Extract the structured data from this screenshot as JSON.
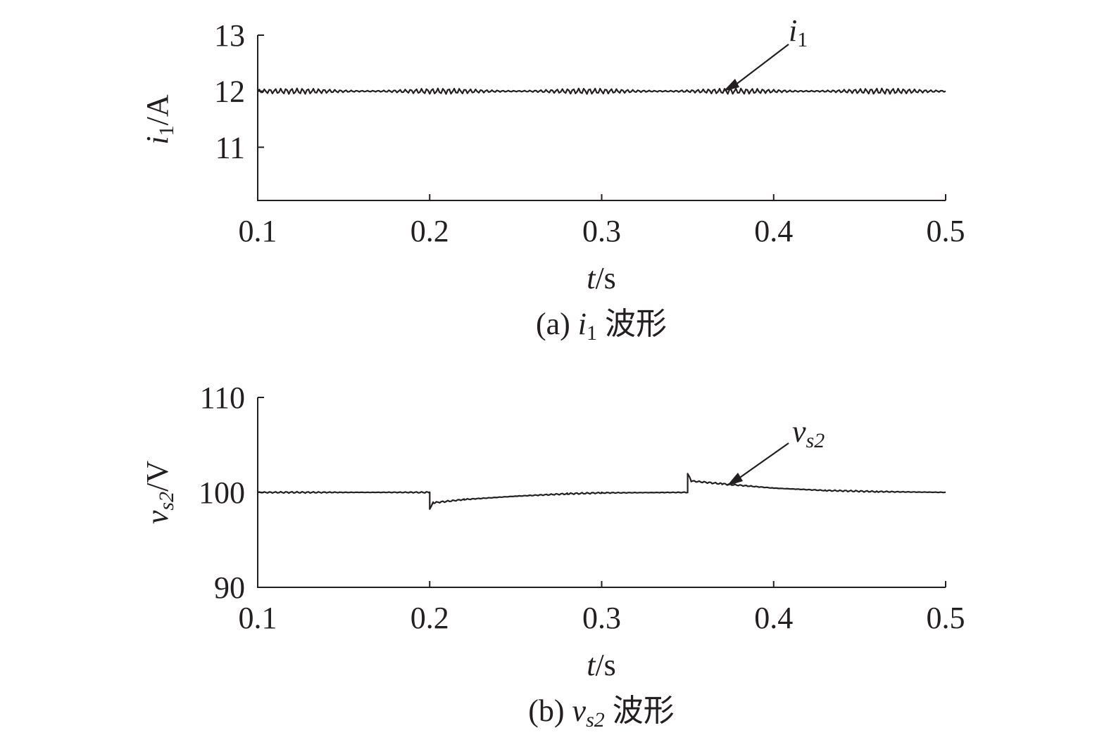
{
  "chart_data": [
    {
      "type": "line",
      "panel": "a",
      "caption": {
        "prefix": "(a) ",
        "var_main": "i",
        "var_sub": "1",
        "suffix": " 波形"
      },
      "ylabel": {
        "main": "i",
        "sub": "1",
        "unit": "/A"
      },
      "xlabel": {
        "main": "t",
        "unit": "/s"
      },
      "xlim": [
        0.1,
        0.5
      ],
      "ylim": [
        10.05,
        13
      ],
      "xticks": [
        0.1,
        0.2,
        0.3,
        0.4,
        0.5
      ],
      "xtick_labels": [
        "0.1",
        "0.2",
        "0.3",
        "0.4",
        "0.5"
      ],
      "yticks": [
        11,
        12,
        13
      ],
      "ytick_labels": [
        "11",
        "12",
        "13"
      ],
      "annotation": {
        "main": "i",
        "sub": "1",
        "x": 0.37,
        "y": 12.0
      },
      "series": [
        {
          "ripple": 0.05,
          "points": [
            [
              0.1,
              12.0
            ],
            [
              0.5,
              12.0
            ]
          ]
        }
      ]
    },
    {
      "type": "line",
      "panel": "b",
      "caption": {
        "prefix": "(b) ",
        "var_main": "v",
        "var_sub": "s2",
        "suffix": " 波形"
      },
      "ylabel": {
        "main": "v",
        "sub": "s2",
        "unit": "/V"
      },
      "xlabel": {
        "main": "t",
        "unit": "/s"
      },
      "xlim": [
        0.1,
        0.5
      ],
      "ylim": [
        90,
        110
      ],
      "xticks": [
        0.1,
        0.2,
        0.3,
        0.4,
        0.5
      ],
      "xtick_labels": [
        "0.1",
        "0.2",
        "0.3",
        "0.4",
        "0.5"
      ],
      "yticks": [
        90,
        100,
        110
      ],
      "ytick_labels": [
        "90",
        "100",
        "110"
      ],
      "annotation": {
        "main": "v",
        "sub": "s2",
        "x": 0.373,
        "y": 100.9
      },
      "series": [
        {
          "ripple": 0.08,
          "points": [
            [
              0.1,
              100.0
            ],
            [
              0.2,
              100.0
            ],
            [
              0.2,
              98.3
            ],
            [
              0.202,
              98.9
            ],
            [
              0.22,
              99.25
            ],
            [
              0.25,
              99.6
            ],
            [
              0.28,
              99.85
            ],
            [
              0.3,
              99.95
            ],
            [
              0.35,
              100.0
            ],
            [
              0.35,
              102.0
            ],
            [
              0.352,
              101.2
            ],
            [
              0.37,
              100.9
            ],
            [
              0.4,
              100.45
            ],
            [
              0.43,
              100.2
            ],
            [
              0.46,
              100.08
            ],
            [
              0.5,
              100.0
            ]
          ]
        }
      ]
    }
  ]
}
